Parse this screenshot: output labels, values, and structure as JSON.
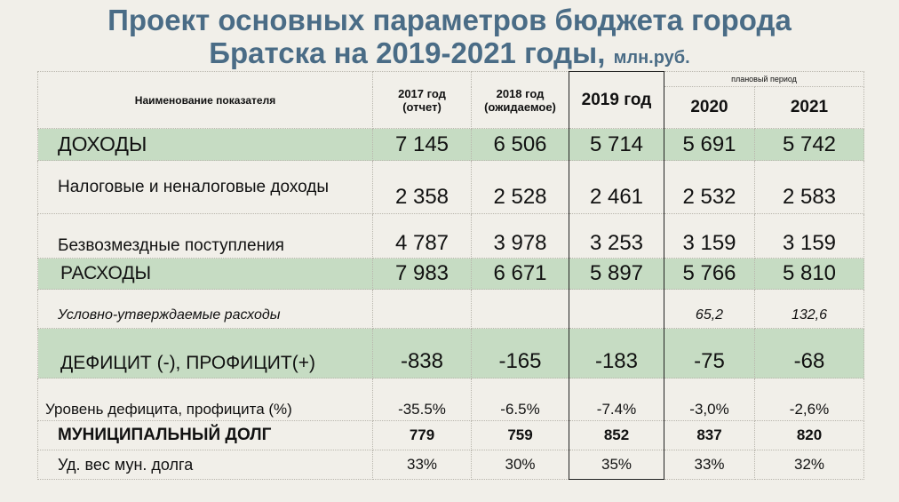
{
  "title": {
    "line1": "Проект основных параметров бюджета города",
    "line2": "Братска на 2019-2021 годы,",
    "unit": "млн.руб."
  },
  "header": {
    "name": "Наименование показателя",
    "y2017": "2017 год",
    "y2017_sub": "(отчет)",
    "y2018": "2018 год",
    "y2018_sub": "(ожидаемое)",
    "y2019": "2019 год",
    "plan": "плановый период",
    "y2020": "2020",
    "y2021": "2021"
  },
  "rows": [
    {
      "name": "ДОХОДЫ",
      "v": [
        "7 145",
        "6 506",
        "5 714",
        "5 691",
        "5 742"
      ]
    },
    {
      "name": "Налоговые и неналоговые доходы",
      "v": [
        "2 358",
        "2 528",
        "2 461",
        "2 532",
        "2 583"
      ]
    },
    {
      "name": "Безвозмездные поступления",
      "v": [
        "4 787",
        "3 978",
        "3 253",
        "3 159",
        "3 159"
      ]
    },
    {
      "name": "РАСХОДЫ",
      "v": [
        "7 983",
        "6 671",
        "5 897",
        "5 766",
        "5 810"
      ]
    },
    {
      "name": "Условно-утверждаемые расходы",
      "v": [
        "",
        "",
        "",
        "65,2",
        "132,6"
      ]
    },
    {
      "name": "ДЕФИЦИТ (-), ПРОФИЦИТ(+)",
      "v": [
        "-838",
        "-165",
        "-183",
        "-75",
        "-68"
      ]
    },
    {
      "name": "Уровень дефицита, профицита (%)",
      "v": [
        "-35.5%",
        "-6.5%",
        "-7.4%",
        "-3,0%",
        "-2,6%"
      ]
    },
    {
      "name": "МУНИЦИПАЛЬНЫЙ ДОЛГ",
      "v": [
        "779",
        "759",
        "852",
        "837",
        "820"
      ]
    },
    {
      "name": "Уд. вес мун. долга",
      "v": [
        "33%",
        "30%",
        "35%",
        "33%",
        "32%"
      ]
    }
  ]
}
